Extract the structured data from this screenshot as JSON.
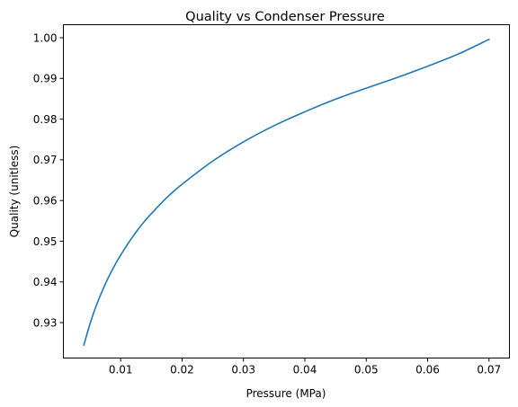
{
  "chart_data": {
    "type": "line",
    "title": "Quality vs Condenser Pressure",
    "xlabel": "Pressure (MPa)",
    "ylabel": "Quality (unitless)",
    "xlim": [
      0.00067,
      0.07333
    ],
    "ylim": [
      0.9213,
      1.0032
    ],
    "grid": false,
    "legend": "none",
    "xticks": [
      0.01,
      0.02,
      0.03,
      0.04,
      0.05,
      0.06,
      0.07
    ],
    "xtick_labels": [
      "0.01",
      "0.02",
      "0.03",
      "0.04",
      "0.05",
      "0.06",
      "0.07"
    ],
    "yticks": [
      0.93,
      0.94,
      0.95,
      0.96,
      0.97,
      0.98,
      0.99,
      1.0
    ],
    "ytick_labels": [
      "0.93",
      "0.94",
      "0.95",
      "0.96",
      "0.97",
      "0.98",
      "0.99",
      "1.00"
    ],
    "series": [
      {
        "color": "#1f77b4",
        "x": [
          0.004,
          0.005,
          0.006,
          0.007,
          0.008,
          0.009,
          0.01,
          0.012,
          0.014,
          0.016,
          0.018,
          0.02,
          0.025,
          0.03,
          0.035,
          0.04,
          0.045,
          0.05,
          0.055,
          0.06,
          0.065,
          0.07
        ],
        "y": [
          0.9245,
          0.9297,
          0.9341,
          0.9378,
          0.9411,
          0.944,
          0.9466,
          0.9512,
          0.9551,
          0.9584,
          0.9614,
          0.964,
          0.9697,
          0.9744,
          0.9784,
          0.9818,
          0.9849,
          0.9876,
          0.9902,
          0.993,
          0.996,
          0.9996
        ]
      }
    ]
  }
}
